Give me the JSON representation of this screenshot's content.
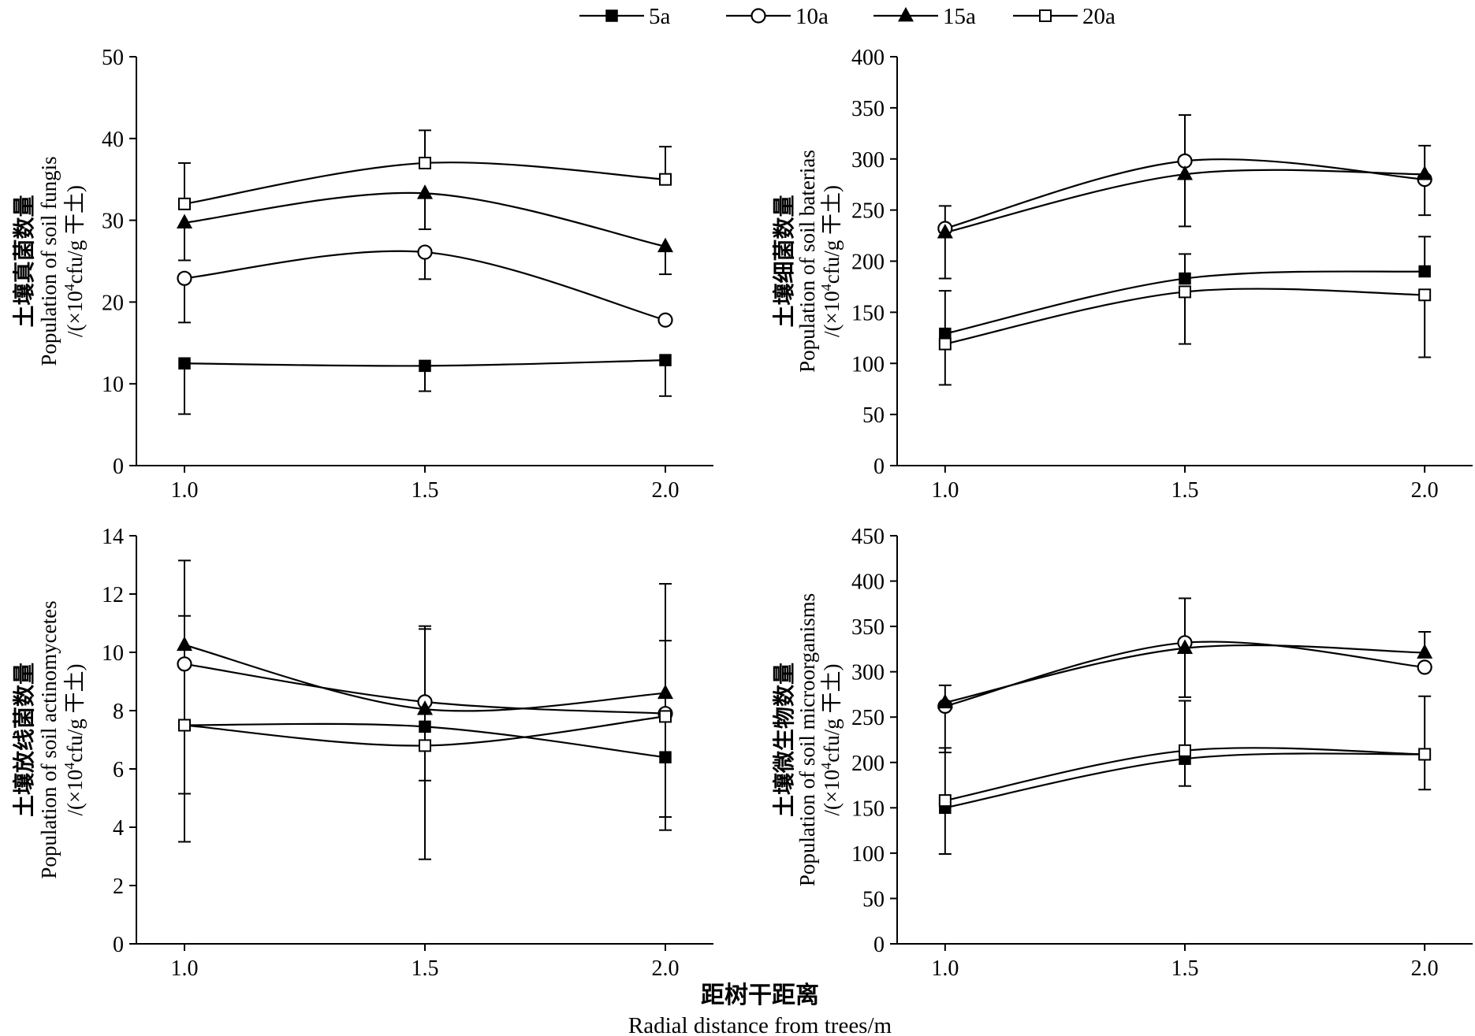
{
  "legend": {
    "items": [
      {
        "label": "5a",
        "marker": "square-filled"
      },
      {
        "label": "10a",
        "marker": "circle-open"
      },
      {
        "label": "15a",
        "marker": "triangle-filled"
      },
      {
        "label": "20a",
        "marker": "square-open"
      }
    ]
  },
  "x_axis_label": {
    "cn": "距树干距离",
    "en": "Radial distance from trees/m"
  },
  "chart_data": [
    {
      "id": "fungi",
      "type": "line",
      "ylabel": {
        "cn": "土壤真菌数量",
        "en": "Population of soil fungis",
        "unit_prefix": "/(×10",
        "unit_sup": "4",
        "unit_suffix": "cfu/g 干土)"
      },
      "x": [
        1.0,
        1.5,
        2.0
      ],
      "x_ticks": [
        "1.0",
        "1.5",
        "2.0"
      ],
      "xlim": [
        0.9,
        2.1
      ],
      "ylim": [
        0,
        50
      ],
      "y_ticks": [
        0,
        10,
        20,
        30,
        40,
        50
      ],
      "y_tick_labels": [
        "0",
        "10",
        "20",
        "30",
        "40",
        "50"
      ],
      "series": [
        {
          "name": "5a",
          "marker": "square-filled",
          "values": [
            12.5,
            12.2,
            12.9
          ],
          "err_low": [
            6.3,
            9.1,
            8.5
          ],
          "err_high": [
            null,
            null,
            null
          ]
        },
        {
          "name": "10a",
          "marker": "circle-open",
          "values": [
            22.9,
            26.1,
            17.8
          ],
          "err_low": [
            17.5,
            22.8,
            null
          ],
          "err_high": [
            null,
            null,
            null
          ]
        },
        {
          "name": "15a",
          "marker": "triangle-filled",
          "values": [
            29.7,
            33.3,
            26.8
          ],
          "err_low": [
            25.1,
            28.9,
            23.4
          ],
          "err_high": [
            null,
            null,
            null
          ]
        },
        {
          "name": "20a",
          "marker": "square-open",
          "values": [
            32.0,
            37.0,
            35.0
          ],
          "err_low": [
            null,
            null,
            null
          ],
          "err_high": [
            37.0,
            41.0,
            39.0
          ]
        }
      ]
    },
    {
      "id": "bacteria",
      "type": "line",
      "ylabel": {
        "cn": "土壤细菌数量",
        "en": "Population of soil baterias",
        "unit_prefix": "/(×10",
        "unit_sup": "4",
        "unit_suffix": "cfu/g 干土)"
      },
      "x": [
        1.0,
        1.5,
        2.0
      ],
      "x_ticks": [
        "1.0",
        "1.5",
        "2.0"
      ],
      "xlim": [
        0.9,
        2.1
      ],
      "ylim": [
        0,
        400
      ],
      "y_ticks": [
        0,
        50,
        100,
        150,
        200,
        250,
        300,
        350,
        400
      ],
      "y_tick_labels": [
        "0",
        "50",
        "100",
        "150",
        "200",
        "250",
        "300",
        "350",
        "400"
      ],
      "series": [
        {
          "name": "5a",
          "marker": "square-filled",
          "values": [
            129,
            183,
            190
          ],
          "err_low": [
            null,
            null,
            null
          ],
          "err_high": [
            171,
            207,
            224
          ]
        },
        {
          "name": "10a",
          "marker": "circle-open",
          "values": [
            232,
            298,
            280
          ],
          "err_low": [
            null,
            null,
            245
          ],
          "err_high": [
            254,
            343,
            313
          ]
        },
        {
          "name": "15a",
          "marker": "triangle-filled",
          "values": [
            228,
            285,
            285
          ],
          "err_low": [
            183,
            234,
            null
          ],
          "err_high": [
            null,
            null,
            null
          ]
        },
        {
          "name": "20a",
          "marker": "square-open",
          "values": [
            119,
            170,
            167
          ],
          "err_low": [
            79,
            119,
            106
          ],
          "err_high": [
            null,
            null,
            null
          ]
        }
      ]
    },
    {
      "id": "actinomycetes",
      "type": "line",
      "ylabel": {
        "cn": "土壤放线菌数量",
        "en": "Population of soil actinomycetes",
        "unit_prefix": "/(×10",
        "unit_sup": "4",
        "unit_suffix": "cfu/g 干土)"
      },
      "x": [
        1.0,
        1.5,
        2.0
      ],
      "x_ticks": [
        "1.0",
        "1.5",
        "2.0"
      ],
      "xlim": [
        0.9,
        2.1
      ],
      "ylim": [
        0,
        14
      ],
      "y_ticks": [
        0,
        2,
        4,
        6,
        8,
        10,
        12,
        14
      ],
      "y_tick_labels": [
        "0",
        "2",
        "4",
        "6",
        "8",
        "10",
        "12",
        "14"
      ],
      "series": [
        {
          "name": "5a",
          "marker": "square-filled",
          "values": [
            7.5,
            7.45,
            6.4
          ],
          "err_low": [
            null,
            null,
            3.9
          ],
          "err_high": [
            null,
            10.8,
            null
          ]
        },
        {
          "name": "10a",
          "marker": "circle-open",
          "values": [
            9.6,
            8.3,
            7.9
          ],
          "err_low": [
            null,
            null,
            null
          ],
          "err_high": [
            null,
            null,
            null
          ]
        },
        {
          "name": "15a",
          "marker": "triangle-filled",
          "values": [
            10.25,
            8.05,
            8.6
          ],
          "err_low": [
            3.5,
            2.9,
            null
          ],
          "err_high": [
            13.15,
            10.9,
            12.35
          ]
        },
        {
          "name": "20a",
          "marker": "square-open",
          "values": [
            7.5,
            6.8,
            7.8
          ],
          "err_low": [
            5.15,
            5.6,
            4.35
          ],
          "err_high": [
            11.25,
            null,
            10.4
          ]
        }
      ]
    },
    {
      "id": "microorganisms",
      "type": "line",
      "ylabel": {
        "cn": "土壤微生物数量",
        "en": "Population of soil microorganisms",
        "unit_prefix": "/(×10",
        "unit_sup": "4",
        "unit_suffix": "cfu/g 干土)"
      },
      "x": [
        1.0,
        1.5,
        2.0
      ],
      "x_ticks": [
        "1.0",
        "1.5",
        "2.0"
      ],
      "xlim": [
        0.9,
        2.1
      ],
      "ylim": [
        0,
        450
      ],
      "y_ticks": [
        0,
        50,
        100,
        150,
        200,
        250,
        300,
        350,
        400,
        450
      ],
      "y_tick_labels": [
        "0",
        "50",
        "100",
        "150",
        "200",
        "250",
        "300",
        "350",
        "400",
        "450"
      ],
      "series": [
        {
          "name": "5a",
          "marker": "square-filled",
          "values": [
            150,
            204,
            209
          ],
          "err_low": [
            99,
            174,
            170
          ],
          "err_high": [
            null,
            null,
            null
          ]
        },
        {
          "name": "10a",
          "marker": "circle-open",
          "values": [
            262,
            332,
            305
          ],
          "err_low": [
            211,
            272,
            null
          ],
          "err_high": [
            null,
            381,
            null
          ]
        },
        {
          "name": "15a",
          "marker": "triangle-filled",
          "values": [
            266,
            326,
            321
          ],
          "err_low": [
            null,
            null,
            null
          ],
          "err_high": [
            285,
            null,
            344
          ]
        },
        {
          "name": "20a",
          "marker": "square-open",
          "values": [
            158,
            213,
            209
          ],
          "err_low": [
            null,
            null,
            null
          ],
          "err_high": [
            216,
            268,
            273
          ]
        }
      ]
    }
  ]
}
